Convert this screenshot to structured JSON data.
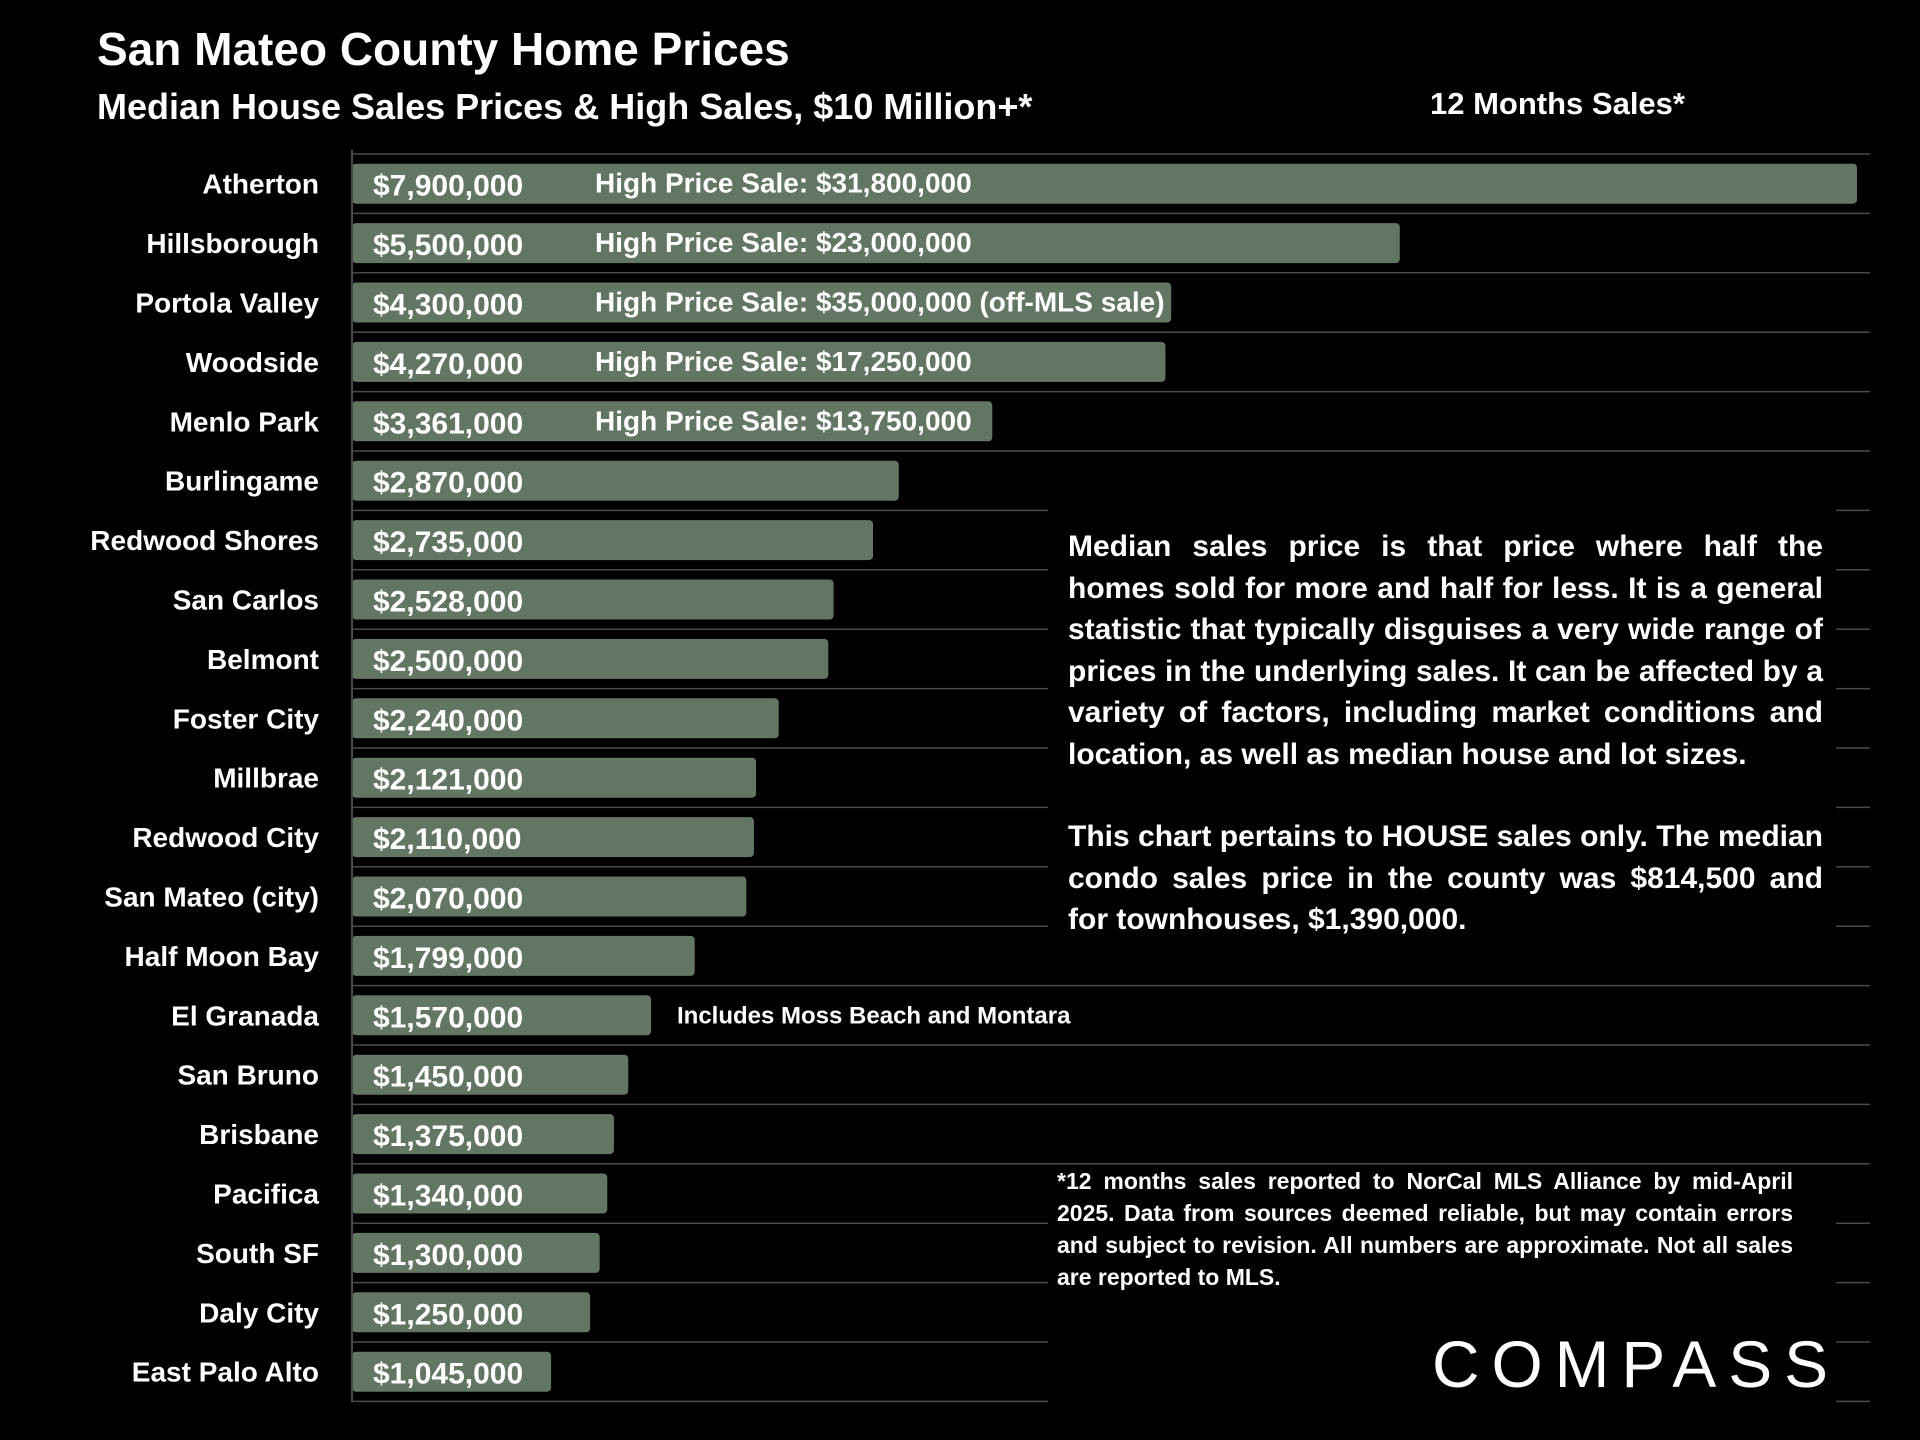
{
  "chart_data": {
    "type": "bar",
    "orientation": "horizontal",
    "title": "San Mateo County Home Prices",
    "subtitle": "Median House Sales Prices & High Sales, $10 Million+*",
    "period_label": "12 Months Sales*",
    "categories": [
      "Atherton",
      "Hillsborough",
      "Portola Valley",
      "Woodside",
      "Menlo Park",
      "Burlingame",
      "Redwood Shores",
      "San Carlos",
      "Belmont",
      "Foster City",
      "Millbrae",
      "Redwood City",
      "San Mateo (city)",
      "Half Moon Bay",
      "El Granada",
      "San Bruno",
      "Brisbane",
      "Pacifica",
      "South SF",
      "Daly City",
      "East Palo Alto"
    ],
    "values": [
      7900000,
      5500000,
      4300000,
      4270000,
      3361000,
      2870000,
      2735000,
      2528000,
      2500000,
      2240000,
      2121000,
      2110000,
      2070000,
      1799000,
      1570000,
      1450000,
      1375000,
      1340000,
      1300000,
      1250000,
      1045000
    ],
    "value_labels": [
      "$7,900,000",
      "$5,500,000",
      "$4,300,000",
      "$4,270,000",
      "$3,361,000",
      "$2,870,000",
      "$2,735,000",
      "$2,528,000",
      "$2,500,000",
      "$2,240,000",
      "$2,121,000",
      "$2,110,000",
      "$2,070,000",
      "$1,799,000",
      "$1,570,000",
      "$1,450,000",
      "$1,375,000",
      "$1,340,000",
      "$1,300,000",
      "$1,250,000",
      "$1,045,000"
    ],
    "annotations": [
      {
        "category": "Atherton",
        "text": "High Price Sale:  $31,800,000"
      },
      {
        "category": "Hillsborough",
        "text": "High Price Sale:  $23,000,000"
      },
      {
        "category": "Portola Valley",
        "text": "High Price Sale:  $35,000,000 (off-MLS sale)"
      },
      {
        "category": "Woodside",
        "text": "High Price Sale:  $17,250,000"
      },
      {
        "category": "Menlo Park",
        "text": "High Price Sale:  $13,750,000"
      },
      {
        "category": "El Granada",
        "text": "Includes Moss Beach and Montara"
      }
    ],
    "xlim": [
      0,
      7900000
    ],
    "grid": "horizontal",
    "bar_color": "#637563"
  },
  "description": {
    "paragraph1": "Median sales price is that price where half the homes sold for more and half for less. It is a general statistic that typically disguises a very wide range of prices in the underlying sales. It can be affected by a variety of factors, including market conditions and location, as well as median house and lot sizes.",
    "paragraph2": "This chart pertains to HOUSE sales only. The median condo sales price in the county was $814,500 and for townhouses, $1,390,000."
  },
  "footnote": "*12 months sales reported to NorCal MLS Alliance by mid-April 2025. Data from sources deemed reliable, but may contain errors and subject to revision. All numbers are approximate. Not all sales are reported to MLS.",
  "logo": {
    "text": "COMPASS"
  }
}
